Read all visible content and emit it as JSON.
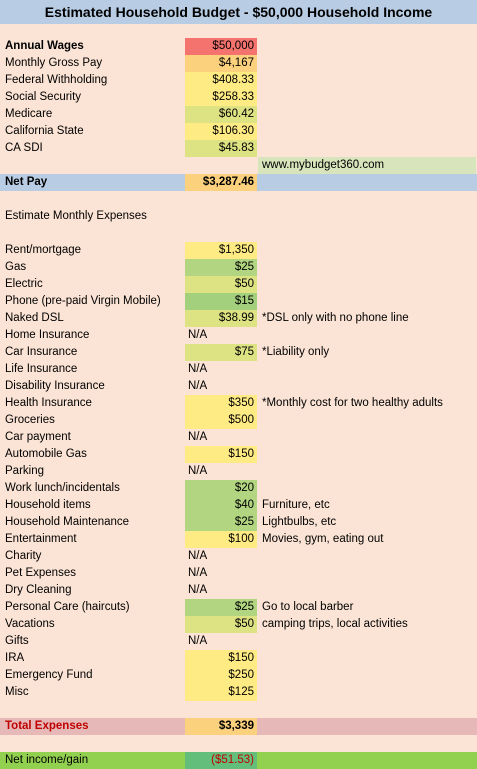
{
  "title": "Estimated Household Budget - $50,000 Household Income",
  "colors": {
    "sheet_bg": "#fbe4d5",
    "title_bg": "#b8cce4",
    "red": "#f4736f",
    "orange": "#fcd17d",
    "yellow": "#ffeb84",
    "lime": "#dde283",
    "green": "#b1d580",
    "green2": "#a3d07c",
    "netpay_bg": "#b8cce4",
    "website_bg": "#d8e4bc",
    "total_bg": "#e6b9b8",
    "net_row_bg": "#92d050",
    "net_val_bg": "#63be7b"
  },
  "income": [
    {
      "label": "Annual Wages",
      "value": "$50,000",
      "bold": true,
      "color": "red"
    },
    {
      "label": "Monthly Gross Pay",
      "value": "$4,167",
      "color": "orange"
    },
    {
      "label": "Federal Withholding",
      "value": "$408.33",
      "color": "yellow"
    },
    {
      "label": "Social Security",
      "value": "$258.33",
      "color": "yellow"
    },
    {
      "label": "Medicare",
      "value": "$60.42",
      "color": "lime"
    },
    {
      "label": "California State",
      "value": "$106.30",
      "color": "yellow"
    },
    {
      "label": "CA SDI",
      "value": "$45.83",
      "color": "lime"
    }
  ],
  "website": "www.mybudget360.com",
  "net_pay": {
    "label": "Net Pay",
    "value": "$3,287.46"
  },
  "expenses_heading": "Estimate Monthly Expenses",
  "expenses": [
    {
      "label": "Rent/mortgage",
      "value": "$1,350",
      "color": "yellow"
    },
    {
      "label": "Gas",
      "value": "$25",
      "color": "green"
    },
    {
      "label": "Electric",
      "value": "$50",
      "color": "lime"
    },
    {
      "label": "Phone (pre-paid Virgin Mobile)",
      "value": "$15",
      "color": "green2"
    },
    {
      "label": "Naked DSL",
      "value": "$38.99",
      "color": "lime",
      "note": "*DSL only with no phone line"
    },
    {
      "label": "Home Insurance",
      "value": "N/A"
    },
    {
      "label": "Car Insurance",
      "value": "$75",
      "color": "lime",
      "note": "*Liability only"
    },
    {
      "label": "Life Insurance",
      "value": "N/A"
    },
    {
      "label": "Disability Insurance",
      "value": "N/A"
    },
    {
      "label": "Health Insurance",
      "value": "$350",
      "color": "yellow",
      "note": "*Monthly cost for two healthy adults"
    },
    {
      "label": "Groceries",
      "value": "$500",
      "color": "yellow"
    },
    {
      "label": "Car payment",
      "value": "N/A"
    },
    {
      "label": "Automobile Gas",
      "value": "$150",
      "color": "yellow"
    },
    {
      "label": "Parking",
      "value": "N/A"
    },
    {
      "label": "Work lunch/incidentals",
      "value": "$20",
      "color": "green"
    },
    {
      "label": "Household items",
      "value": "$40",
      "color": "green",
      "note": "Furniture, etc"
    },
    {
      "label": "Household Maintenance",
      "value": "$25",
      "color": "green",
      "note": "Lightbulbs, etc"
    },
    {
      "label": "Entertainment",
      "value": "$100",
      "color": "yellow",
      "note": "Movies, gym, eating out"
    },
    {
      "label": "Charity",
      "value": "N/A"
    },
    {
      "label": "Pet Expenses",
      "value": "N/A"
    },
    {
      "label": "Dry Cleaning",
      "value": "N/A"
    },
    {
      "label": "Personal Care (haircuts)",
      "value": "$25",
      "color": "green",
      "note": "Go to local barber"
    },
    {
      "label": "Vacations",
      "value": "$50",
      "color": "lime",
      "note": "camping trips, local activities"
    },
    {
      "label": "Gifts",
      "value": "N/A"
    },
    {
      "label": "IRA",
      "value": "$150",
      "color": "yellow"
    },
    {
      "label": "Emergency Fund",
      "value": "$250",
      "color": "yellow"
    },
    {
      "label": "Misc",
      "value": "$125",
      "color": "yellow"
    }
  ],
  "total_expenses": {
    "label": "Total Expenses",
    "value": "$3,339"
  },
  "net_income": {
    "label": "Net income/gain",
    "value": "($51.53)"
  }
}
